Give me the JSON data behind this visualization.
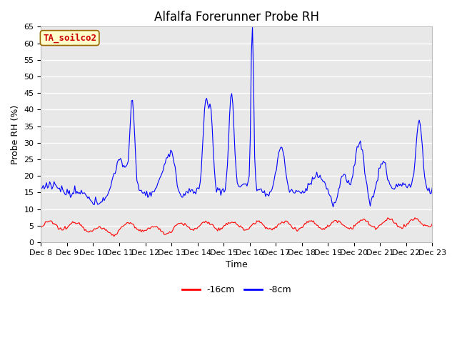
{
  "title": "Alfalfa Forerunner Probe RH",
  "xlabel": "Time",
  "ylabel": "Probe RH (%)",
  "ylim": [
    0,
    65
  ],
  "yticks": [
    0,
    5,
    10,
    15,
    20,
    25,
    30,
    35,
    40,
    45,
    50,
    55,
    60,
    65
  ],
  "xtick_labels": [
    "Dec 8",
    "Dec 9",
    "Dec 10",
    "Dec 11",
    "Dec 12",
    "Dec 13",
    "Dec 14",
    "Dec 15",
    "Dec 16",
    "Dec 17",
    "Dec 18",
    "Dec 19",
    "Dec 20",
    "Dec 21",
    "Dec 22",
    "Dec 23"
  ],
  "annotation_text": "TA_soilco2",
  "annotation_color": "#cc0000",
  "annotation_bg": "#ffffcc",
  "annotation_border": "#996600",
  "line_16cm_color": "#ff0000",
  "line_8cm_color": "#0000ff",
  "fig_bg_color": "#ffffff",
  "plot_bg_color": "#e8e8e8",
  "grid_color": "#ffffff",
  "title_fontsize": 12,
  "label_fontsize": 9,
  "tick_fontsize": 8,
  "legend_fontsize": 9
}
